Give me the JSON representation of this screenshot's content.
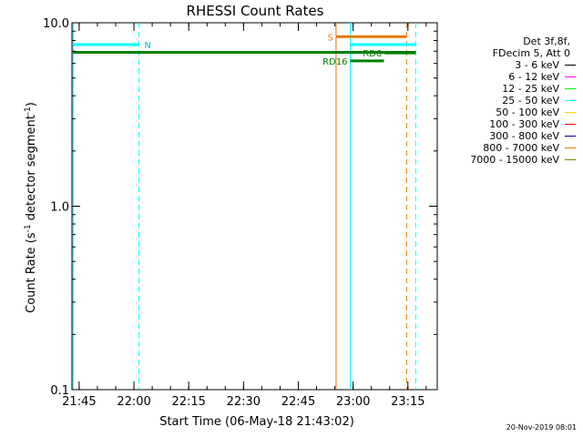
{
  "chart_data": {
    "type": "line",
    "title": "RHESSI Count Rates",
    "xlabel": "Start Time (06-May-18 21:43:02)",
    "ylabel_main": "Count Rate (s",
    "ylabel_sup1": "-1",
    "ylabel_mid": " detector segment",
    "ylabel_sup2": "-1",
    "ylabel_end": ")",
    "y_scale": "log",
    "ylim": [
      0.1,
      10.0
    ],
    "y_ticks": [
      {
        "value": 0.1,
        "label": "0.1"
      },
      {
        "value": 1.0,
        "label": "1.0"
      },
      {
        "value": 10.0,
        "label": "10.0"
      }
    ],
    "x_unit": "minutes after 21:43:02",
    "xlim": [
      0,
      100
    ],
    "x_ticks": [
      {
        "t": 1.97,
        "label": "21:45"
      },
      {
        "t": 16.97,
        "label": "22:00"
      },
      {
        "t": 31.97,
        "label": "22:15"
      },
      {
        "t": 46.97,
        "label": "22:30"
      },
      {
        "t": 61.97,
        "label": "22:45"
      },
      {
        "t": 76.97,
        "label": "23:00"
      },
      {
        "t": 91.97,
        "label": "23:15"
      }
    ],
    "vlines": [
      {
        "t": 0.3,
        "color": "#00ffff",
        "style": "solid"
      },
      {
        "t": 18.3,
        "color": "#00ffff",
        "style": "dashed"
      },
      {
        "t": 72.3,
        "color": "#e87800",
        "style": "solid"
      },
      {
        "t": 76.2,
        "color": "#00ffff",
        "style": "solid"
      },
      {
        "t": 91.6,
        "color": "#e87800",
        "style": "dashed"
      },
      {
        "t": 94.1,
        "color": "#00ffff",
        "style": "dashed"
      }
    ],
    "intervals": [
      {
        "label": "N",
        "t0": 0.3,
        "t1": 18.3,
        "y": 7.6,
        "color": "#00ffff",
        "label_color": "#00b8d0",
        "label_side": "right"
      },
      {
        "label": "",
        "t0": 0.3,
        "t1": 94.1,
        "y": 6.9,
        "color": "#008000",
        "label_color": "#008000",
        "label_side": "none"
      },
      {
        "label": "S",
        "t0": 72.3,
        "t1": 91.6,
        "y": 8.4,
        "color": "#e87800",
        "label_color": "#e87800",
        "label_side": "left"
      },
      {
        "label": "",
        "t0": 76.2,
        "t1": 94.1,
        "y": 7.6,
        "color": "#00ffff",
        "label_color": "#00b8d0",
        "label_side": "none"
      },
      {
        "label": "RD6",
        "t0": 85.6,
        "t1": 94.1,
        "y": 6.85,
        "color": "#008000",
        "label_color": "#008000",
        "label_side": "left"
      },
      {
        "label": "RD16",
        "t0": 76.2,
        "t1": 85.4,
        "y": 6.2,
        "color": "#008000",
        "label_color": "#008000",
        "label_side": "left"
      }
    ]
  },
  "legend": {
    "line1": "Det 3f,8f,",
    "line2": "FDecim 5, Att 0",
    "items": [
      {
        "label": "3 - 6 keV",
        "color": "#000000"
      },
      {
        "label": "6 - 12 keV",
        "color": "#ff00ff"
      },
      {
        "label": "12 - 25 keV",
        "color": "#00ff00"
      },
      {
        "label": "25 - 50 keV",
        "color": "#00ffff"
      },
      {
        "label": "50 - 100 keV",
        "color": "#ffd700"
      },
      {
        "label": "100 - 300 keV",
        "color": "#ff0000"
      },
      {
        "label": "300 - 800 keV",
        "color": "#0000a0"
      },
      {
        "label": "800 - 7000 keV",
        "color": "#e87800"
      },
      {
        "label": "7000 - 15000 keV",
        "color": "#808000"
      }
    ]
  },
  "timestamp": "20-Nov-2019 08:01"
}
